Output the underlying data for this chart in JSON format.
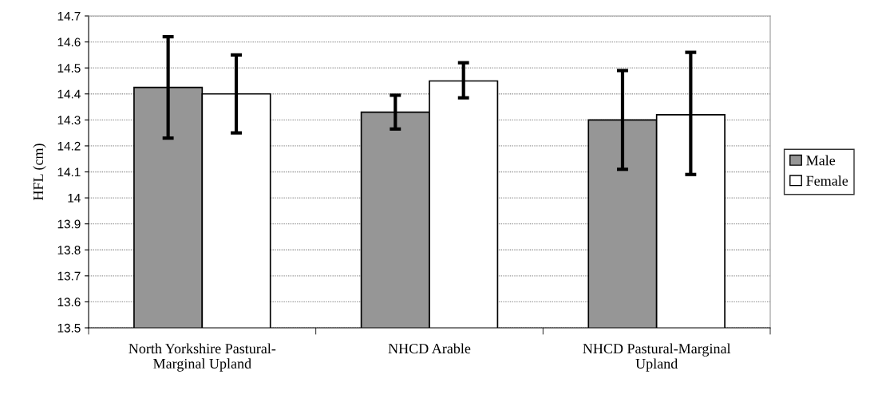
{
  "chart_data": {
    "type": "bar",
    "ylabel": "HFL (cm)",
    "categories": [
      "North Yorkshire Pastural-\nMarginal Upland",
      "NHCD Arable",
      "NHCD Pastural-Marginal\nUpland"
    ],
    "series": [
      {
        "name": "Male",
        "color": "#969696",
        "values": [
          14.425,
          14.33,
          14.3
        ],
        "errors": [
          [
            14.23,
            14.62
          ],
          [
            14.265,
            14.395
          ],
          [
            14.11,
            14.49
          ]
        ]
      },
      {
        "name": "Female",
        "color": "#ffffff",
        "values": [
          14.4,
          14.45,
          14.32
        ],
        "errors": [
          [
            14.25,
            14.55
          ],
          [
            14.385,
            14.52
          ],
          [
            14.09,
            14.56
          ]
        ]
      }
    ],
    "ylim": [
      13.5,
      14.7
    ],
    "yticks": [
      13.5,
      13.6,
      13.7,
      13.8,
      13.9,
      14,
      14.1,
      14.2,
      14.3,
      14.4,
      14.5,
      14.6,
      14.7
    ],
    "grid": "y",
    "legend": "right"
  }
}
